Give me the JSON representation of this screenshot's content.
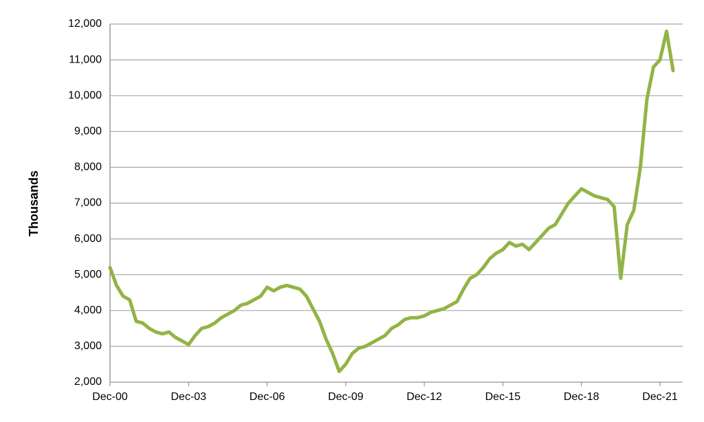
{
  "chart_data": {
    "type": "line",
    "y_label": "Thousands",
    "categories": [
      "Dec-00",
      null,
      null,
      null,
      null,
      null,
      null,
      null,
      null,
      null,
      null,
      null,
      "Dec-03",
      null,
      null,
      null,
      null,
      null,
      null,
      null,
      null,
      null,
      null,
      null,
      "Dec-06",
      null,
      null,
      null,
      null,
      null,
      null,
      null,
      null,
      null,
      null,
      null,
      "Dec-09",
      null,
      null,
      null,
      null,
      null,
      null,
      null,
      null,
      null,
      null,
      null,
      "Dec-12",
      null,
      null,
      null,
      null,
      null,
      null,
      null,
      null,
      null,
      null,
      null,
      "Dec-15",
      null,
      null,
      null,
      null,
      null,
      null,
      null,
      null,
      null,
      null,
      null,
      "Dec-18",
      null,
      null,
      null,
      null,
      null,
      null,
      null,
      null,
      null,
      null,
      null,
      "Dec-21",
      null,
      null
    ],
    "series": [
      {
        "color": "#92b446",
        "values": [
          5200,
          4700,
          4400,
          4300,
          3700,
          3650,
          3500,
          3400,
          3350,
          3400,
          3250,
          3150,
          3050,
          3300,
          3500,
          3550,
          3650,
          3800,
          3900,
          4000,
          4150,
          4200,
          4300,
          4400,
          4650,
          4550,
          4650,
          4700,
          4650,
          4600,
          4400,
          4050,
          3700,
          3200,
          2800,
          2300,
          2500,
          2800,
          2950,
          3000,
          3100,
          3200,
          3300,
          3500,
          3600,
          3750,
          3800,
          3800,
          3850,
          3950,
          4000,
          4050,
          4150,
          4250,
          4600,
          4900,
          5000,
          5200,
          5450,
          5600,
          5700,
          5900,
          5800,
          5850,
          5700,
          5900,
          6100,
          6300,
          6400,
          6700,
          7000,
          7200,
          7400,
          7300,
          7200,
          7150,
          7100,
          6900,
          4900,
          6400,
          6800,
          8000,
          9900,
          10800,
          11000,
          11800,
          10700
        ]
      }
    ],
    "ylim": [
      2000,
      12000
    ],
    "yticks": [
      {
        "value": 2000,
        "label": "2,000"
      },
      {
        "value": 3000,
        "label": "3,000"
      },
      {
        "value": 4000,
        "label": "4,000"
      },
      {
        "value": 5000,
        "label": "5,000"
      },
      {
        "value": 6000,
        "label": "6,000"
      },
      {
        "value": 7000,
        "label": "7,000"
      },
      {
        "value": 8000,
        "label": "8,000"
      },
      {
        "value": 9000,
        "label": "9,000"
      },
      {
        "value": 10000,
        "label": "10,000"
      },
      {
        "value": 11000,
        "label": "11,000"
      },
      {
        "value": 12000,
        "label": "12,000"
      }
    ],
    "grid": true
  }
}
